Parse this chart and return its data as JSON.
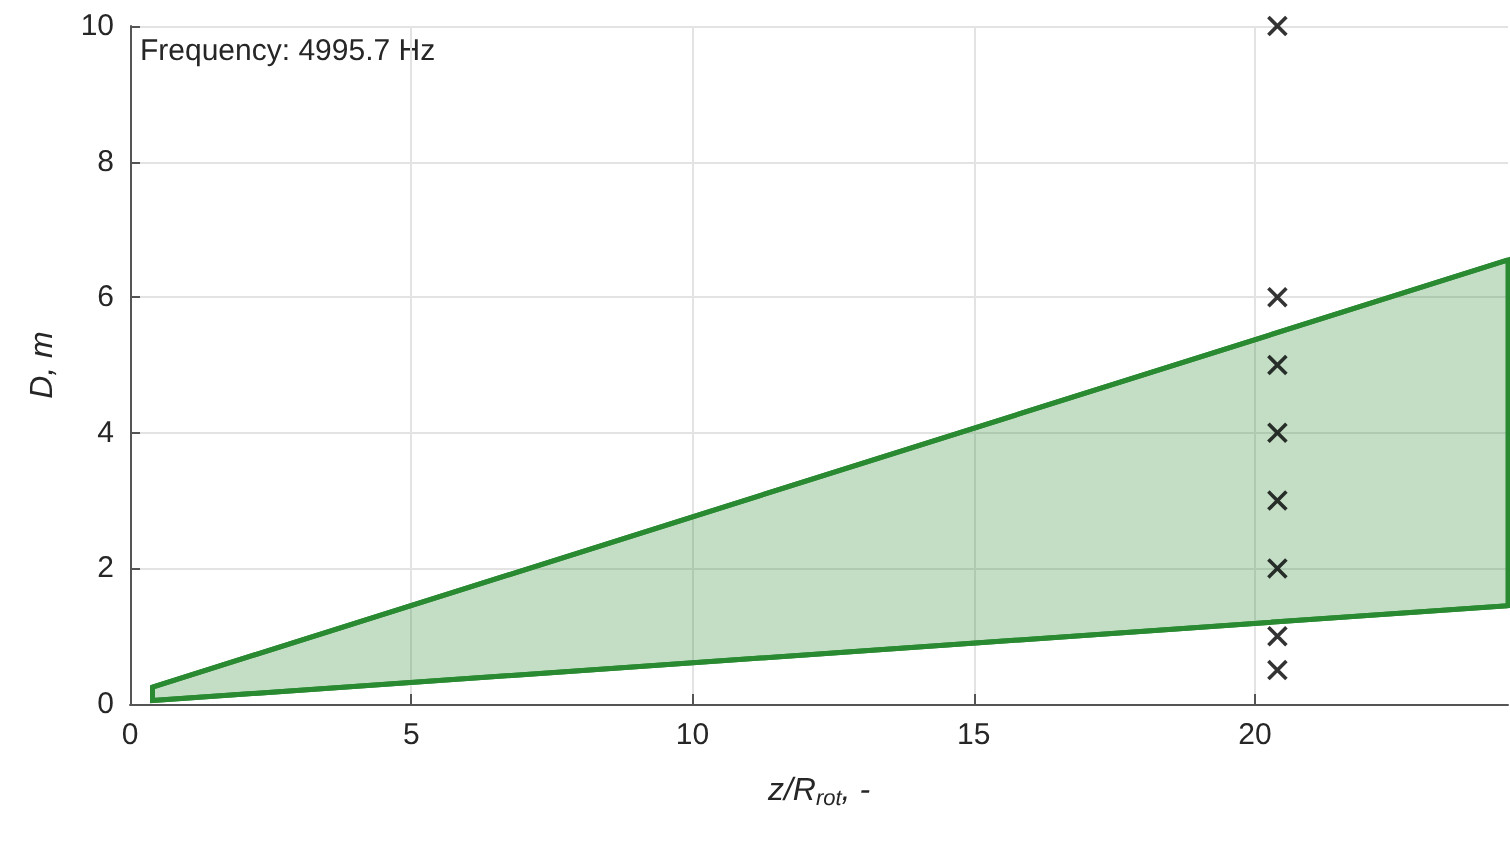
{
  "chart_data": {
    "type": "line",
    "xlabel": "z/R$_{rot}$, -",
    "ylabel": "D, m",
    "annotations": [
      "Frequency: 4995.7 Hz"
    ],
    "series": [
      {
        "color": "#2a8a32",
        "x": [
          0.4,
          24.5
        ],
        "values": [
          0.25,
          6.55
        ],
        "lower": [
          0.05,
          1.45
        ],
        "upper": [
          0.25,
          6.55
        ]
      },
      {
        "color": "#2a8a32",
        "x": [
          0.4,
          24.5
        ],
        "values": [
          0.05,
          1.45
        ]
      },
      {
        "type": "scatter",
        "color": "#000000",
        "marker": "cross",
        "x": [
          20.4,
          20.4,
          20.4,
          20.4,
          20.4,
          20.4,
          20.4,
          20.4
        ],
        "values": [
          0.5,
          1,
          2,
          3,
          4,
          5,
          6,
          10
        ]
      }
    ],
    "xlim": [
      0,
      24.5
    ],
    "xticks": [
      0,
      5,
      10,
      15,
      20
    ],
    "ylim": [
      0,
      10
    ],
    "yticks": [
      0,
      2,
      4,
      6,
      8,
      10
    ],
    "grid": true
  }
}
